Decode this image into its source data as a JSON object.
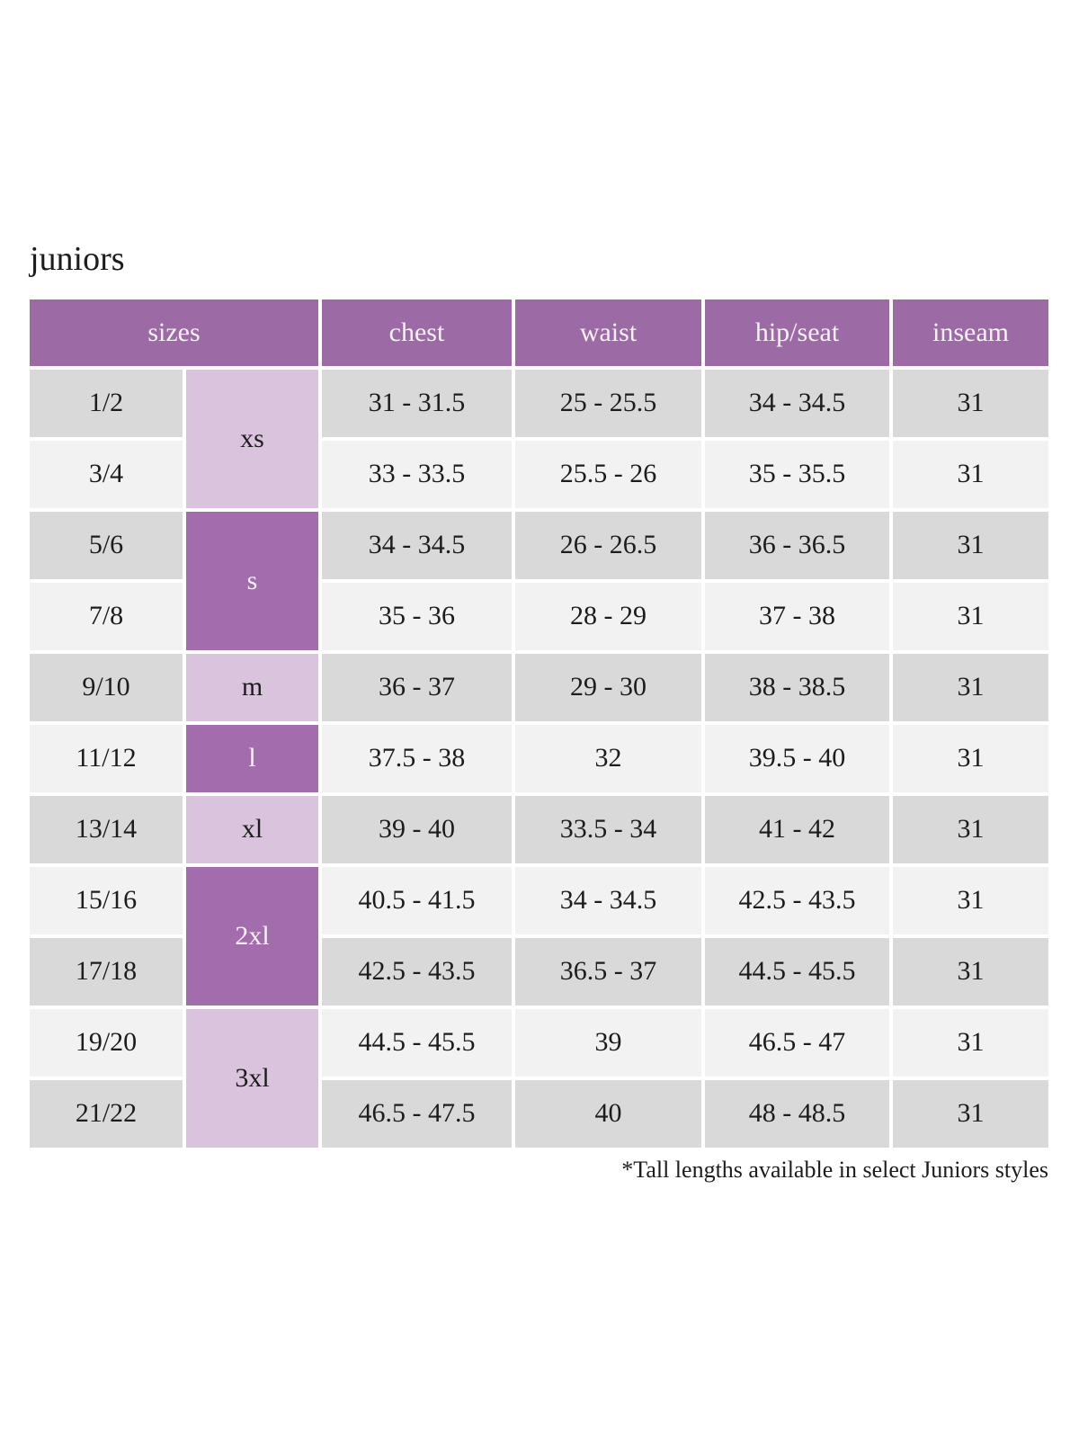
{
  "colors": {
    "header-bg": "#9c6aa5",
    "header-text": "#f7f2f7",
    "group-dark": "#a36dad",
    "group-light": "#dac4dd",
    "row-dark": "#d9d9d9",
    "row-light": "#f2f2f2",
    "text": "#1c1c1c"
  },
  "chart_data": {
    "type": "table",
    "title": "juniors",
    "headers": [
      "sizes",
      "chest",
      "waist",
      "hip/seat",
      "inseam"
    ],
    "size_groups": [
      {
        "label": "xs",
        "rows_spanned": 2,
        "style": "light"
      },
      {
        "label": "s",
        "rows_spanned": 2,
        "style": "dark"
      },
      {
        "label": "m",
        "rows_spanned": 1,
        "style": "light"
      },
      {
        "label": "l",
        "rows_spanned": 1,
        "style": "dark"
      },
      {
        "label": "xl",
        "rows_spanned": 1,
        "style": "light"
      },
      {
        "label": "2xl",
        "rows_spanned": 2,
        "style": "dark"
      },
      {
        "label": "3xl",
        "rows_spanned": 2,
        "style": "light"
      }
    ],
    "rows": [
      {
        "size": "1/2",
        "group": "xs",
        "chest": "31 - 31.5",
        "waist": "25 - 25.5",
        "hip_seat": "34 - 34.5",
        "inseam": "31"
      },
      {
        "size": "3/4",
        "group": "xs",
        "chest": "33 - 33.5",
        "waist": "25.5 - 26",
        "hip_seat": "35 - 35.5",
        "inseam": "31"
      },
      {
        "size": "5/6",
        "group": "s",
        "chest": "34 - 34.5",
        "waist": "26 - 26.5",
        "hip_seat": "36 - 36.5",
        "inseam": "31"
      },
      {
        "size": "7/8",
        "group": "s",
        "chest": "35 - 36",
        "waist": "28 - 29",
        "hip_seat": "37 - 38",
        "inseam": "31"
      },
      {
        "size": "9/10",
        "group": "m",
        "chest": "36 - 37",
        "waist": "29 - 30",
        "hip_seat": "38 - 38.5",
        "inseam": "31"
      },
      {
        "size": "11/12",
        "group": "l",
        "chest": "37.5 - 38",
        "waist": "32",
        "hip_seat": "39.5 - 40",
        "inseam": "31"
      },
      {
        "size": "13/14",
        "group": "xl",
        "chest": "39 - 40",
        "waist": "33.5 - 34",
        "hip_seat": "41 - 42",
        "inseam": "31"
      },
      {
        "size": "15/16",
        "group": "2xl",
        "chest": "40.5 - 41.5",
        "waist": "34 - 34.5",
        "hip_seat": "42.5 - 43.5",
        "inseam": "31"
      },
      {
        "size": "17/18",
        "group": "2xl",
        "chest": "42.5 - 43.5",
        "waist": "36.5 - 37",
        "hip_seat": "44.5 - 45.5",
        "inseam": "31"
      },
      {
        "size": "19/20",
        "group": "3xl",
        "chest": "44.5 - 45.5",
        "waist": "39",
        "hip_seat": "46.5 - 47",
        "inseam": "31"
      },
      {
        "size": "21/22",
        "group": "3xl",
        "chest": "46.5 - 47.5",
        "waist": "40",
        "hip_seat": "48 - 48.5",
        "inseam": "31"
      }
    ],
    "footnote": "*Tall lengths available in select Juniors styles",
    "layout": {
      "grid": "off",
      "row_striping": [
        "row-dark",
        "row-light"
      ]
    }
  }
}
